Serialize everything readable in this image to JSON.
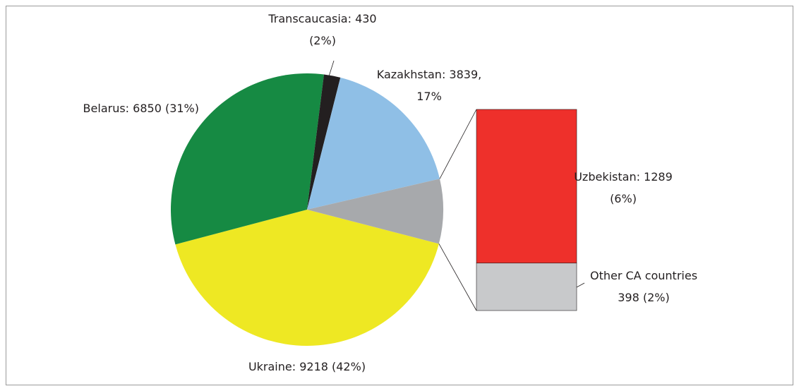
{
  "chart_data": {
    "type": "pie",
    "pie": {
      "values": [
        9218,
        6850,
        430,
        3839
      ],
      "value_labels": [
        [
          "Ukraine: 9218 (42%)"
        ],
        [
          "Belarus: 6850 (31%)"
        ],
        [
          "Transcaucasia: 430",
          "(2%)"
        ],
        [
          "Kazakhstan: 3839,",
          "17%"
        ]
      ],
      "colors": [
        "#eee823",
        "#168a43",
        "#231f20",
        "#8fbfe6"
      ]
    },
    "breakdown_color": "#a7a9ac",
    "bar": {
      "values": [
        1289,
        398
      ],
      "value_labels": [
        [
          "Uzbekistan: 1289",
          "(6%)"
        ],
        [
          "Other CA countries",
          "398 (2%)"
        ]
      ],
      "colors": [
        "#ee302b",
        "#c8c9cb"
      ]
    }
  }
}
